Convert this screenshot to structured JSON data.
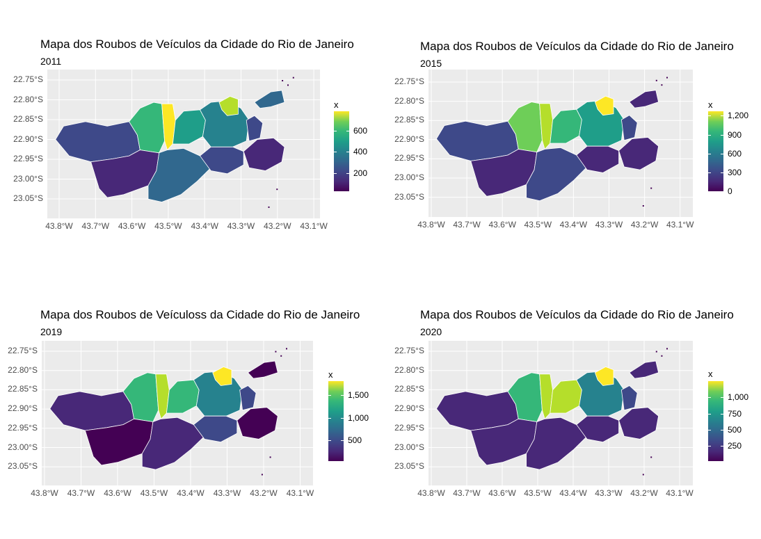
{
  "colors": {
    "viridis": [
      "#440154",
      "#482878",
      "#3e4989",
      "#31688e",
      "#26828e",
      "#1f9e89",
      "#35b779",
      "#6ece58",
      "#b5de2b",
      "#fde725"
    ],
    "panel_background": "#ebebeb",
    "grid": "#ffffff"
  },
  "chart_data": [
    {
      "type": "choropleth",
      "title": "Mapa dos Roubos de Veículos da Cidade do Rio de Janeiro",
      "subtitle": "2011",
      "legend_title": "x",
      "legend_placement": "right",
      "legend_breaks": [
        "200",
        "400",
        "600"
      ],
      "legend_range": [
        30,
        780
      ],
      "legend_break_values": [
        200,
        400,
        600
      ],
      "y_ticks": [
        "22.75°S",
        "22.80°S",
        "22.85°S",
        "22.90°S",
        "22.95°S",
        "23.00°S",
        "23.05°S"
      ],
      "x_ticks": [
        "43.8°W",
        "43.7°W",
        "43.6°W",
        "43.5°W",
        "43.4°W",
        "43.3°W",
        "43.2°W",
        "43.1°W"
      ],
      "grid": true,
      "region_levels": {
        "west": 0.25,
        "centerwest": 0.65,
        "bangu": 0.95,
        "southwest": 0.15,
        "barra": 0.3,
        "north_mid": 0.55,
        "north_e": 0.45,
        "north_ne": 0.9,
        "south": 0.25,
        "ilha": 0.28,
        "southeast": 0.1,
        "centro": 0.2
      }
    },
    {
      "type": "choropleth",
      "title": "Mapa dos Roubos de Veículos da Cidade do Rio de Janeiro",
      "subtitle": "2015",
      "legend_title": "x",
      "legend_placement": "right",
      "legend_breaks": [
        "0",
        "300",
        "600",
        "900",
        "1,200"
      ],
      "legend_range": [
        0,
        1270
      ],
      "legend_break_values": [
        0,
        300,
        600,
        900,
        1200
      ],
      "y_ticks": [
        "22.75°S",
        "22.80°S",
        "22.85°S",
        "22.90°S",
        "22.95°S",
        "23.00°S",
        "23.05°S"
      ],
      "x_ticks": [
        "43.8°W",
        "43.7°W",
        "43.6°W",
        "43.5°W",
        "43.4°W",
        "43.3°W",
        "43.2°W",
        "43.1°W"
      ],
      "grid": true,
      "region_levels": {
        "west": 0.22,
        "centerwest": 0.78,
        "bangu": 0.85,
        "southwest": 0.1,
        "barra": 0.25,
        "north_mid": 0.7,
        "north_e": 0.5,
        "north_ne": 0.98,
        "south": 0.15,
        "ilha": 0.1,
        "southeast": 0.08,
        "centro": 0.2
      }
    },
    {
      "type": "choropleth",
      "title": "Mapa dos Roubos de Veículoss da Cidade do Rio de Janeiro",
      "subtitle": "2019",
      "legend_title": "x",
      "legend_placement": "right",
      "legend_breaks": [
        "500",
        "1,000",
        "1,500"
      ],
      "legend_range": [
        50,
        1800
      ],
      "legend_break_values": [
        500,
        1000,
        1500
      ],
      "y_ticks": [
        "22.75°S",
        "22.80°S",
        "22.85°S",
        "22.90°S",
        "22.95°S",
        "23.00°S",
        "23.05°S"
      ],
      "x_ticks": [
        "43.8°W",
        "43.7°W",
        "43.6°W",
        "43.5°W",
        "43.4°W",
        "43.3°W",
        "43.2°W",
        "43.1°W"
      ],
      "grid": true,
      "region_levels": {
        "west": 0.12,
        "centerwest": 0.62,
        "bangu": 0.9,
        "southwest": 0.05,
        "barra": 0.12,
        "north_mid": 0.7,
        "north_e": 0.4,
        "north_ne": 0.98,
        "south": 0.22,
        "ilha": 0.05,
        "southeast": 0.05,
        "centro": 0.18
      }
    },
    {
      "type": "choropleth",
      "title": "Mapa dos Roubos de Veículos da Cidade do Rio de Janeiro",
      "subtitle": "2020",
      "legend_title": "x",
      "legend_placement": "right",
      "legend_breaks": [
        "250",
        "500",
        "750",
        "1,000"
      ],
      "legend_range": [
        20,
        1250
      ],
      "legend_break_values": [
        250,
        500,
        750,
        1000
      ],
      "y_ticks": [
        "22.75°S",
        "22.80°S",
        "22.85°S",
        "22.90°S",
        "22.95°S",
        "23.00°S",
        "23.05°S"
      ],
      "x_ticks": [
        "43.8°W",
        "43.7°W",
        "43.6°W",
        "43.5°W",
        "43.4°W",
        "43.3°W",
        "43.2°W",
        "43.1°W"
      ],
      "grid": true,
      "region_levels": {
        "west": 0.08,
        "centerwest": 0.62,
        "bangu": 0.9,
        "southwest": 0.06,
        "barra": 0.15,
        "north_mid": 0.85,
        "north_e": 0.4,
        "north_ne": 0.98,
        "south": 0.15,
        "ilha": 0.06,
        "southeast": 0.06,
        "centro": 0.2
      }
    }
  ]
}
